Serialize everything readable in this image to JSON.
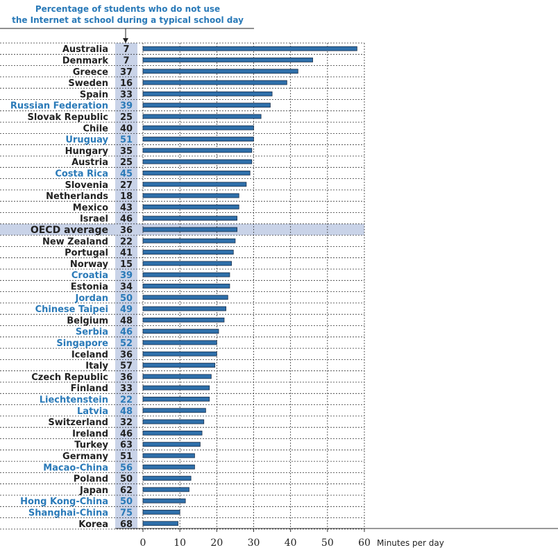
{
  "chart_data": {
    "type": "bar",
    "orientation": "horizontal",
    "header": {
      "line1": "Percentage of students who do not use",
      "line2": "the Internet at school during a typical school day"
    },
    "xlabel": "Minutes per day",
    "xlim": [
      0,
      60
    ],
    "xticks": [
      0,
      10,
      20,
      30,
      40,
      50,
      60
    ],
    "grid": "dashed vertical and horizontal",
    "colors": {
      "bar": "#2e6faa",
      "bar_edge": "#1a2f4a",
      "partner_text": "#2a7ab8",
      "oecd_text": "#222222",
      "pct_band": "#c9d3e8",
      "highlight_band": "#c9d3e8"
    },
    "rows": [
      {
        "country": "Australia",
        "pct": "7",
        "minutes": 58,
        "partner": false
      },
      {
        "country": "Denmark",
        "pct": "7",
        "minutes": 46,
        "partner": false
      },
      {
        "country": "Greece",
        "pct": "37",
        "minutes": 42,
        "partner": false
      },
      {
        "country": "Sweden",
        "pct": "16",
        "minutes": 39,
        "partner": false
      },
      {
        "country": "Spain",
        "pct": "33",
        "minutes": 35,
        "partner": false
      },
      {
        "country": "Russian Federation",
        "pct": "39",
        "minutes": 34.5,
        "partner": true
      },
      {
        "country": "Slovak Republic",
        "pct": "25",
        "minutes": 32,
        "partner": false
      },
      {
        "country": "Chile",
        "pct": "40",
        "minutes": 30,
        "partner": false
      },
      {
        "country": "Uruguay",
        "pct": "51",
        "minutes": 30,
        "partner": true
      },
      {
        "country": "Hungary",
        "pct": "35",
        "minutes": 29.5,
        "partner": false
      },
      {
        "country": "Austria",
        "pct": "25",
        "minutes": 29.5,
        "partner": false
      },
      {
        "country": "Costa Rica",
        "pct": "45",
        "minutes": 29,
        "partner": true
      },
      {
        "country": "Slovenia",
        "pct": "27",
        "minutes": 28,
        "partner": false
      },
      {
        "country": "Netherlands",
        "pct": "18",
        "minutes": 26,
        "partner": false
      },
      {
        "country": "Mexico",
        "pct": "43",
        "minutes": 26,
        "partner": false
      },
      {
        "country": "Israel",
        "pct": "46",
        "minutes": 25.5,
        "partner": false
      },
      {
        "country": "OECD average",
        "pct": "36",
        "minutes": 25.5,
        "partner": false,
        "average": true
      },
      {
        "country": "New Zealand",
        "pct": "22",
        "minutes": 25,
        "partner": false
      },
      {
        "country": "Portugal",
        "pct": "41",
        "minutes": 24.5,
        "partner": false
      },
      {
        "country": "Norway",
        "pct": "15",
        "minutes": 24,
        "partner": false
      },
      {
        "country": "Croatia",
        "pct": "39",
        "minutes": 23.5,
        "partner": true
      },
      {
        "country": "Estonia",
        "pct": "34",
        "minutes": 23.5,
        "partner": false
      },
      {
        "country": "Jordan",
        "pct": "50",
        "minutes": 23,
        "partner": true
      },
      {
        "country": "Chinese Taipei",
        "pct": "49",
        "minutes": 22.5,
        "partner": true
      },
      {
        "country": "Belgium",
        "pct": "48",
        "minutes": 22,
        "partner": false
      },
      {
        "country": "Serbia",
        "pct": "46",
        "minutes": 20.5,
        "partner": true
      },
      {
        "country": "Singapore",
        "pct": "52",
        "minutes": 20,
        "partner": true
      },
      {
        "country": "Iceland",
        "pct": "36",
        "minutes": 20,
        "partner": false
      },
      {
        "country": "Italy",
        "pct": "57",
        "minutes": 19.5,
        "partner": false
      },
      {
        "country": "Czech Republic",
        "pct": "36",
        "minutes": 18.5,
        "partner": false
      },
      {
        "country": "Finland",
        "pct": "33",
        "minutes": 18,
        "partner": false
      },
      {
        "country": "Liechtenstein",
        "pct": "22",
        "minutes": 18,
        "partner": true
      },
      {
        "country": "Latvia",
        "pct": "48",
        "minutes": 17,
        "partner": true
      },
      {
        "country": "Switzerland",
        "pct": "32",
        "minutes": 16.5,
        "partner": false
      },
      {
        "country": "Ireland",
        "pct": "46",
        "minutes": 16,
        "partner": false
      },
      {
        "country": "Turkey",
        "pct": "63",
        "minutes": 15.5,
        "partner": false
      },
      {
        "country": "Germany",
        "pct": "51",
        "minutes": 14,
        "partner": false
      },
      {
        "country": "Macao-China",
        "pct": "56",
        "minutes": 14,
        "partner": true
      },
      {
        "country": "Poland",
        "pct": "50",
        "minutes": 13,
        "partner": false
      },
      {
        "country": "Japan",
        "pct": "62",
        "minutes": 12.5,
        "partner": false
      },
      {
        "country": "Hong Kong-China",
        "pct": "50",
        "minutes": 11.5,
        "partner": true
      },
      {
        "country": "Shanghai-China",
        "pct": "75",
        "minutes": 10,
        "partner": true
      },
      {
        "country": "Korea",
        "pct": "68",
        "minutes": 9.5,
        "partner": false
      }
    ]
  }
}
